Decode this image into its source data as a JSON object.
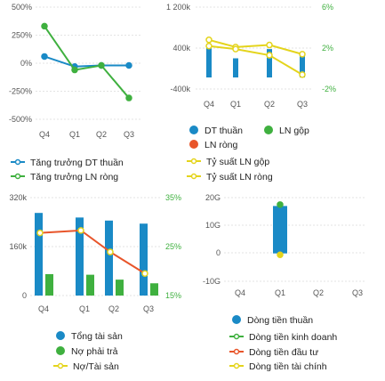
{
  "colors": {
    "blue": "#1a8ac6",
    "green": "#3fb03f",
    "red": "#e8552a",
    "yellow": "#e4d41c",
    "right_axis": "#3fb03f",
    "tick": "#555555",
    "grid": "#e3e3e3"
  },
  "chart_data": [
    {
      "type": "line",
      "categories": [
        "Q4",
        "Q1",
        "Q2",
        "Q3"
      ],
      "ylim": [
        -500,
        500
      ],
      "y_ticks": [
        "500%",
        "250%",
        "0%",
        "-250%",
        "-500%"
      ],
      "series": [
        {
          "name": "Tăng trưởng DT thuần",
          "color": "#1a8ac6",
          "values": [
            60,
            -30,
            -20,
            -20
          ]
        },
        {
          "name": "Tăng trưởng LN ròng",
          "color": "#3fb03f",
          "values": [
            330,
            -60,
            -20,
            -310
          ]
        }
      ]
    },
    {
      "type": "bar",
      "categories": [
        "Q4",
        "Q1",
        "Q2",
        "Q3"
      ],
      "ylim": [
        -400,
        1200
      ],
      "y2lim": [
        -2,
        6
      ],
      "y_ticks": [
        "1 200k",
        "400k",
        "-400k"
      ],
      "y2_ticks": [
        "6%",
        "2%",
        "-2%"
      ],
      "legend_bars": [
        {
          "name": "DT thuần",
          "color": "#1a8ac6"
        },
        {
          "name": "LN gộp",
          "color": "#3fb03f"
        },
        {
          "name": "LN ròng",
          "color": "#e8552a"
        }
      ],
      "series": [
        {
          "name": "DT thuần",
          "kind": "bar",
          "axis": "left",
          "color": "#1a8ac6",
          "values": [
            460,
            200,
            380,
            280
          ]
        },
        {
          "name": "Tỷ suất LN gộp",
          "kind": "line",
          "axis": "right",
          "color": "#e4d41c",
          "values": [
            2.8,
            2.1,
            2.3,
            1.4
          ]
        },
        {
          "name": "Tỷ suất LN ròng",
          "kind": "line",
          "axis": "right",
          "color": "#e4d41c",
          "values": [
            2.2,
            1.9,
            1.3,
            -0.6
          ]
        }
      ]
    },
    {
      "type": "bar",
      "categories": [
        "Q4",
        "Q1",
        "Q2",
        "Q3"
      ],
      "ylim": [
        0,
        320
      ],
      "y2lim": [
        15,
        35
      ],
      "y_ticks": [
        "320k",
        "160k",
        "0"
      ],
      "y2_ticks": [
        "35%",
        "25%",
        "15%"
      ],
      "series": [
        {
          "name": "Tổng tài sản",
          "kind": "bar",
          "axis": "left",
          "color": "#1a8ac6",
          "values": [
            270,
            255,
            245,
            235
          ]
        },
        {
          "name": "Nợ phải trả",
          "kind": "bar",
          "axis": "left",
          "color": "#3fb03f",
          "values": [
            70,
            68,
            52,
            40
          ]
        },
        {
          "name": "Nợ/Tài sản",
          "kind": "line",
          "axis": "right",
          "color": "#e4d41c",
          "color_line": "#e8552a",
          "values": [
            27.8,
            28.3,
            23.9,
            19.5
          ]
        }
      ]
    },
    {
      "type": "bar",
      "categories": [
        "Q4",
        "Q1",
        "Q2",
        "Q3"
      ],
      "ylim": [
        -10,
        20
      ],
      "y_ticks": [
        "20G",
        "10G",
        "0",
        "-10G"
      ],
      "series": [
        {
          "name": "Dòng tiền thuần",
          "kind": "bar",
          "color": "#1a8ac6",
          "values": [
            null,
            17,
            null,
            null
          ]
        },
        {
          "name": "Dòng tiền kinh doanh",
          "kind": "line",
          "color": "#3fb03f",
          "values": [
            null,
            17.5,
            null,
            null
          ]
        },
        {
          "name": "Dòng tiền đầu tư",
          "kind": "line",
          "color": "#e8552a",
          "values": [
            null,
            null,
            null,
            null
          ]
        },
        {
          "name": "Dòng tiền tài chính",
          "kind": "line",
          "color": "#e4d41c",
          "values": [
            null,
            -0.5,
            null,
            null
          ]
        }
      ]
    }
  ]
}
